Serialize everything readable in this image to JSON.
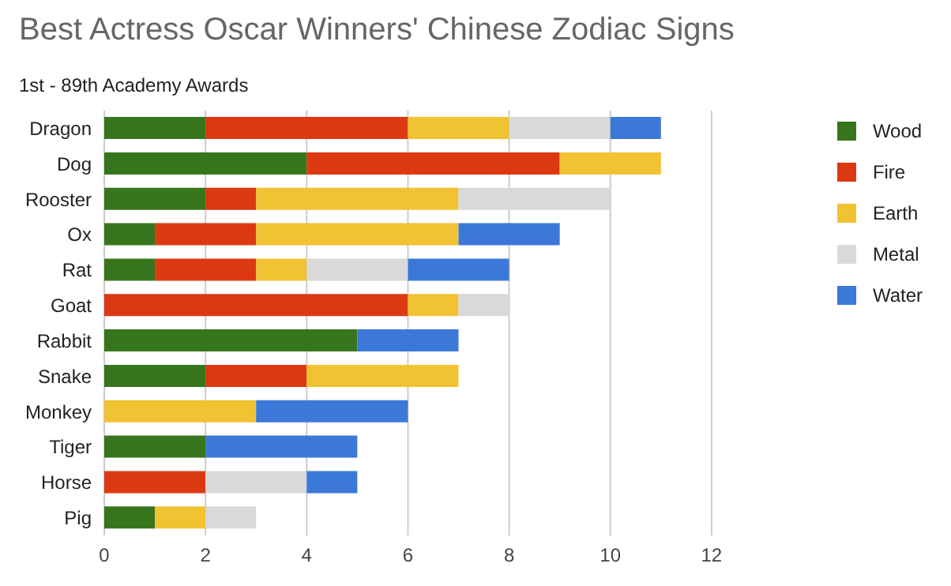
{
  "chart_data": {
    "type": "bar",
    "orientation": "horizontal",
    "stacked": true,
    "title": "Best Actress Oscar Winners' Chinese Zodiac Signs",
    "subtitle": "1st - 89th Academy Awards",
    "categories": [
      "Dragon",
      "Dog",
      "Rooster",
      "Ox",
      "Rat",
      "Goat",
      "Rabbit",
      "Snake",
      "Monkey",
      "Tiger",
      "Horse",
      "Pig"
    ],
    "series": [
      {
        "name": "Wood",
        "color": "#38761d",
        "values": [
          2,
          4,
          2,
          1,
          1,
          null,
          5,
          2,
          null,
          2,
          null,
          1
        ]
      },
      {
        "name": "Fire",
        "color": "#dc3912",
        "values": [
          4,
          5,
          1,
          2,
          2,
          6,
          null,
          2,
          null,
          null,
          2,
          null
        ]
      },
      {
        "name": "Earth",
        "color": "#f1c232",
        "values": [
          2,
          2,
          4,
          4,
          1,
          1,
          null,
          3,
          3,
          null,
          null,
          1
        ]
      },
      {
        "name": "Metal",
        "color": "#d9d9d9",
        "values": [
          2,
          null,
          3,
          null,
          2,
          1,
          null,
          null,
          null,
          null,
          2,
          1
        ]
      },
      {
        "name": "Water",
        "color": "#3c78d8",
        "values": [
          1,
          null,
          null,
          2,
          2,
          null,
          2,
          null,
          3,
          3,
          1,
          null
        ]
      }
    ],
    "xlim": [
      0,
      12
    ],
    "xticks": [
      0,
      2,
      4,
      6,
      8,
      10,
      12
    ],
    "grid": "x",
    "legend": "right"
  }
}
